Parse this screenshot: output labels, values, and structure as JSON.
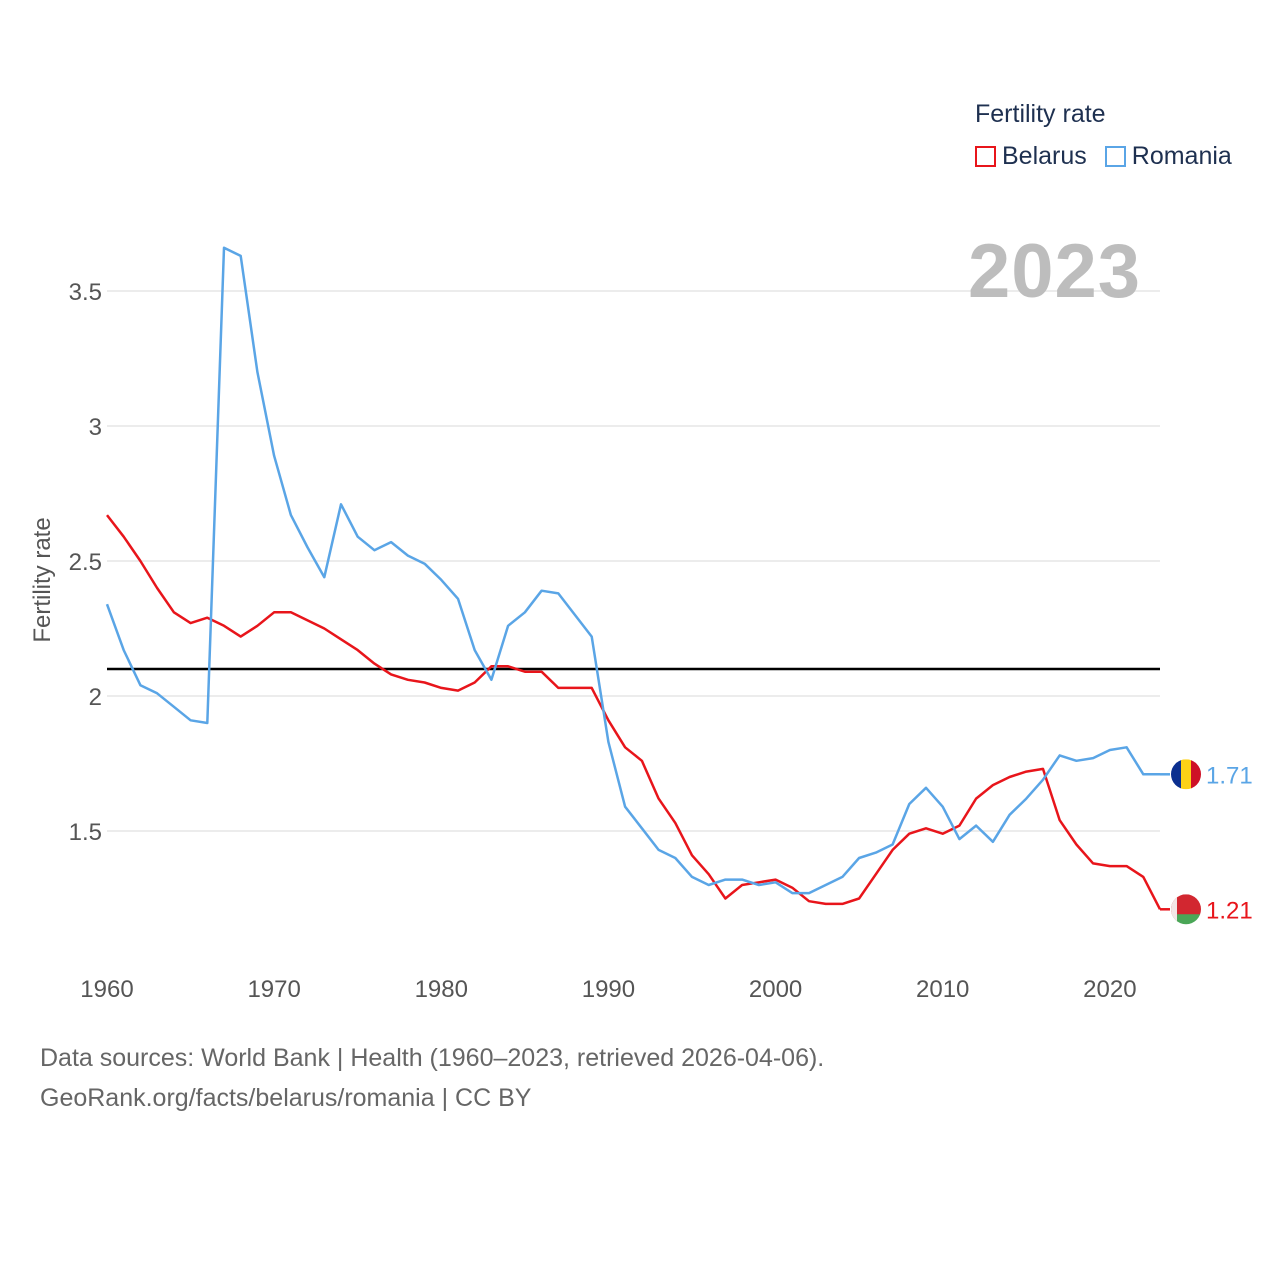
{
  "legend": {
    "title": "Fertility rate",
    "items": [
      {
        "label": "Belarus",
        "color": "#e8151b"
      },
      {
        "label": "Romania",
        "color": "#5aa5e6"
      }
    ]
  },
  "year_badge": "2023",
  "footer": {
    "line1": "Data sources: World Bank | Health (1960–2023, retrieved 2026-04-06).",
    "line2": "GeoRank.org/facts/belarus/romania | CC BY"
  },
  "chart_data": {
    "type": "line",
    "title": "Fertility rate",
    "xlabel": "",
    "ylabel": "Fertility rate",
    "xlim": [
      1960,
      2023
    ],
    "ylim": [
      1.0,
      3.75
    ],
    "xticks": [
      1960,
      1970,
      1980,
      1990,
      2000,
      2010,
      2020
    ],
    "yticks": [
      1.5,
      2,
      2.5,
      3,
      3.5
    ],
    "ytick_labels": [
      "1.5",
      "2",
      "2.5",
      "3",
      "3.5"
    ],
    "grid": true,
    "reference_line": {
      "y": 2.1,
      "color": "#000000"
    },
    "x": [
      1960,
      1961,
      1962,
      1963,
      1964,
      1965,
      1966,
      1967,
      1968,
      1969,
      1970,
      1971,
      1972,
      1973,
      1974,
      1975,
      1976,
      1977,
      1978,
      1979,
      1980,
      1981,
      1982,
      1983,
      1984,
      1985,
      1986,
      1987,
      1988,
      1989,
      1990,
      1991,
      1992,
      1993,
      1994,
      1995,
      1996,
      1997,
      1998,
      1999,
      2000,
      2001,
      2002,
      2003,
      2004,
      2005,
      2006,
      2007,
      2008,
      2009,
      2010,
      2011,
      2012,
      2013,
      2014,
      2015,
      2016,
      2017,
      2018,
      2019,
      2020,
      2021,
      2022,
      2023
    ],
    "series": [
      {
        "name": "Belarus",
        "color": "#e8151b",
        "end_label": "1.21",
        "values": [
          2.67,
          2.59,
          2.5,
          2.4,
          2.31,
          2.27,
          2.29,
          2.26,
          2.22,
          2.26,
          2.31,
          2.31,
          2.28,
          2.25,
          2.21,
          2.17,
          2.12,
          2.08,
          2.06,
          2.05,
          2.03,
          2.02,
          2.05,
          2.11,
          2.11,
          2.09,
          2.09,
          2.03,
          2.03,
          2.03,
          1.91,
          1.81,
          1.76,
          1.62,
          1.53,
          1.41,
          1.34,
          1.25,
          1.3,
          1.31,
          1.32,
          1.29,
          1.24,
          1.23,
          1.23,
          1.25,
          1.34,
          1.43,
          1.49,
          1.51,
          1.49,
          1.52,
          1.62,
          1.67,
          1.7,
          1.72,
          1.73,
          1.54,
          1.45,
          1.38,
          1.37,
          1.37,
          1.33,
          1.21
        ]
      },
      {
        "name": "Romania",
        "color": "#5aa5e6",
        "end_label": "1.71",
        "values": [
          2.34,
          2.17,
          2.04,
          2.01,
          1.96,
          1.91,
          1.9,
          3.66,
          3.63,
          3.2,
          2.89,
          2.67,
          2.55,
          2.44,
          2.71,
          2.59,
          2.54,
          2.57,
          2.52,
          2.49,
          2.43,
          2.36,
          2.17,
          2.06,
          2.26,
          2.31,
          2.39,
          2.38,
          2.3,
          2.22,
          1.83,
          1.59,
          1.51,
          1.43,
          1.4,
          1.33,
          1.3,
          1.32,
          1.32,
          1.3,
          1.31,
          1.27,
          1.27,
          1.3,
          1.33,
          1.4,
          1.42,
          1.45,
          1.6,
          1.66,
          1.59,
          1.47,
          1.52,
          1.46,
          1.56,
          1.62,
          1.69,
          1.78,
          1.76,
          1.77,
          1.8,
          1.81,
          1.71,
          1.71
        ]
      }
    ]
  }
}
